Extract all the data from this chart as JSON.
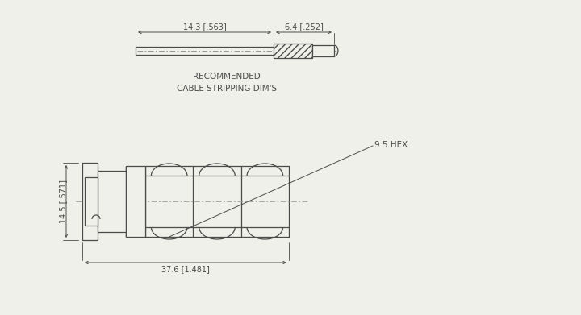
{
  "bg_color": "#f0f0eb",
  "line_color": "#4a4a4a",
  "lw": 0.9,
  "lw_thin": 0.5,
  "top_dim1_label": "14.3 [.563]",
  "top_dim2_label": "6.4 [.252]",
  "caption": "RECOMMENDED\nCABLE STRIPPING DIM'S",
  "main_dim_w_label": "37.6 [1.481]",
  "main_dim_h_label": "14.5 [.571]",
  "hex_label": "9.5 HEX"
}
